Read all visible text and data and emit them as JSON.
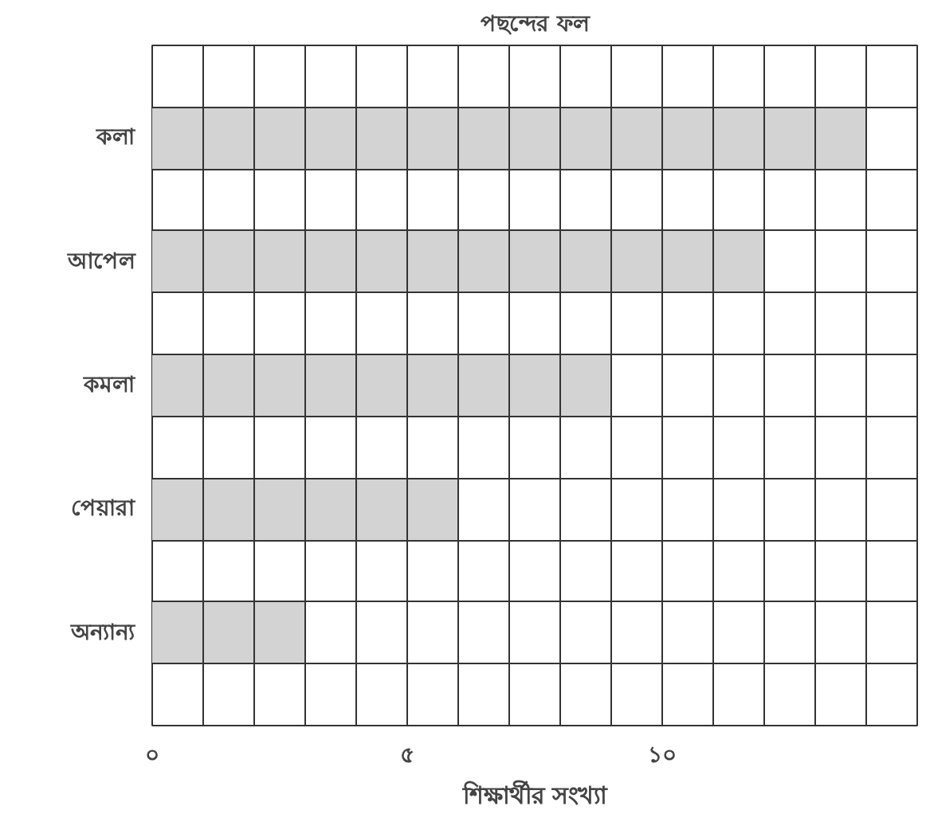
{
  "chart_data": {
    "type": "bar",
    "orientation": "horizontal",
    "title": "পছন্দের ফল",
    "xlabel": "শিক্ষার্থীর সংখ্যা",
    "categories": [
      "কলা",
      "আপেল",
      "কমলা",
      "পেয়ারা",
      "অন্যান্য"
    ],
    "values": [
      14,
      12,
      9,
      6,
      3
    ],
    "color": "#d3d3d3",
    "xlim": [
      0,
      15
    ],
    "xticks": [
      {
        "value": 0,
        "label": "০"
      },
      {
        "value": 1,
        "label": null
      },
      {
        "value": 2,
        "label": null
      },
      {
        "value": 3,
        "label": null
      },
      {
        "value": 4,
        "label": null
      },
      {
        "value": 5,
        "label": "৫"
      },
      {
        "value": 6,
        "label": null
      },
      {
        "value": 7,
        "label": null
      },
      {
        "value": 8,
        "label": null
      },
      {
        "value": 9,
        "label": null
      },
      {
        "value": 10,
        "label": "১০"
      },
      {
        "value": 11,
        "label": null
      },
      {
        "value": 12,
        "label": null
      },
      {
        "value": 13,
        "label": null
      },
      {
        "value": 14,
        "label": null
      },
      {
        "value": 15,
        "label": null
      }
    ],
    "grid": true
  }
}
